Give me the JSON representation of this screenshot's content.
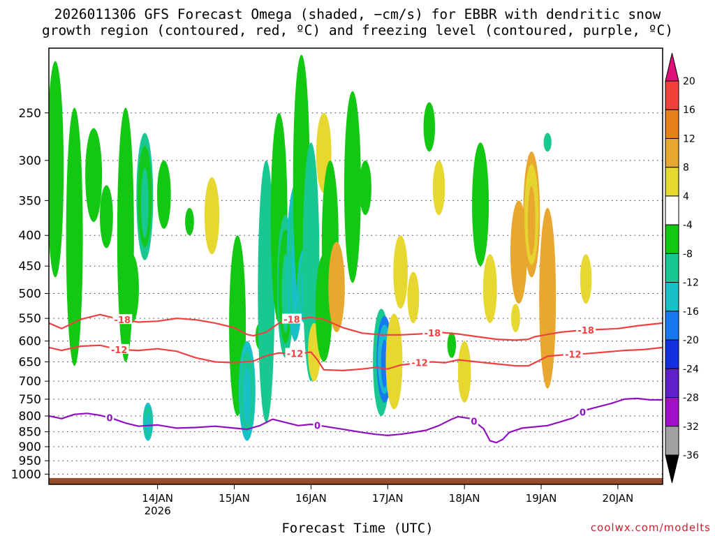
{
  "title": {
    "line1": "2026011306 GFS Forecast Omega (shaded, −cm/s) for EBBR with dendritic snow",
    "line2": "growth region (contoured, red, ºC) and freezing level (contoured, purple, ºC)"
  },
  "credit": "coolwx.com/modelts",
  "chart_data": {
    "type": "heatmap",
    "xlabel": "Forecast Time (UTC)",
    "ylabel": "",
    "x_range_hours": [
      -16,
      176
    ],
    "y_scale": "log-pressure (inverted)",
    "y_range_hpa": [
      1040,
      195
    ],
    "x_ticks": [
      {
        "label": "14JAN",
        "sublabel": "2026",
        "hour": 18
      },
      {
        "label": "15JAN",
        "sublabel": "",
        "hour": 42
      },
      {
        "label": "16JAN",
        "sublabel": "",
        "hour": 66
      },
      {
        "label": "17JAN",
        "sublabel": "",
        "hour": 90
      },
      {
        "label": "18JAN",
        "sublabel": "",
        "hour": 114
      },
      {
        "label": "19JAN",
        "sublabel": "",
        "hour": 138
      },
      {
        "label": "20JAN",
        "sublabel": "",
        "hour": 162
      }
    ],
    "y_ticks": [
      {
        "label": "250",
        "p": 250
      },
      {
        "label": "300",
        "p": 300
      },
      {
        "label": "350",
        "p": 350
      },
      {
        "label": "400",
        "p": 400
      },
      {
        "label": "450",
        "p": 450
      },
      {
        "label": "500",
        "p": 500
      },
      {
        "label": "550",
        "p": 550
      },
      {
        "label": "600",
        "p": 600
      },
      {
        "label": "650",
        "p": 650
      },
      {
        "label": "700",
        "p": 700
      },
      {
        "label": "750",
        "p": 750
      },
      {
        "label": "800",
        "p": 800
      },
      {
        "label": "850",
        "p": 850
      },
      {
        "label": "900",
        "p": 900
      },
      {
        "label": "950",
        "p": 950
      },
      {
        "label": "1000",
        "p": 1000
      }
    ],
    "grid": "dotted horizontal lines",
    "colorbar": {
      "units": "-cm/s",
      "labels": [
        "20",
        "16",
        "12",
        "8",
        "4",
        "-4",
        "-8",
        "-12",
        "-16",
        "-20",
        "-24",
        "-28",
        "-32",
        "-36"
      ],
      "bins": [
        {
          "range": "> 20",
          "color": "#e0107a"
        },
        {
          "range": "16 to 20",
          "color": "#f0403a"
        },
        {
          "range": "12 to 16",
          "color": "#e8801e"
        },
        {
          "range": "8 to 12",
          "color": "#e8a830"
        },
        {
          "range": "4 to 8",
          "color": "#e6d830"
        },
        {
          "range": "-4 to 4",
          "color": "#ffffff"
        },
        {
          "range": "-8 to -4",
          "color": "#12c812"
        },
        {
          "range": "-12 to -8",
          "color": "#18c890"
        },
        {
          "range": "-16 to -12",
          "color": "#18c0c8"
        },
        {
          "range": "-20 to -16",
          "color": "#1878f0"
        },
        {
          "range": "-24 to -20",
          "color": "#1430e0"
        },
        {
          "range": "-28 to -24",
          "color": "#6020c8"
        },
        {
          "range": "-32 to -28",
          "color": "#a010c8"
        },
        {
          "range": "-36 to -32",
          "color": "#a0a0a0"
        },
        {
          "range": "< -36",
          "color": "#000000"
        }
      ]
    },
    "contours": [
      {
        "name": "-18",
        "color": "#f04040",
        "labels": [
          {
            "hour": 7,
            "text": "-18"
          },
          {
            "hour": 60,
            "text": "-18"
          },
          {
            "hour": 104,
            "text": "-18"
          },
          {
            "hour": 152,
            "text": "-18"
          }
        ],
        "points": [
          [
            -16,
            560
          ],
          [
            -12,
            572
          ],
          [
            -6,
            552
          ],
          [
            0,
            542
          ],
          [
            6,
            552
          ],
          [
            12,
            558
          ],
          [
            18,
            556
          ],
          [
            24,
            550
          ],
          [
            30,
            553
          ],
          [
            36,
            560
          ],
          [
            42,
            570
          ],
          [
            46,
            585
          ],
          [
            48,
            588
          ],
          [
            52,
            580
          ],
          [
            56,
            560
          ],
          [
            60,
            552
          ],
          [
            66,
            548
          ],
          [
            70,
            552
          ],
          [
            76,
            570
          ],
          [
            82,
            582
          ],
          [
            88,
            586
          ],
          [
            94,
            586
          ],
          [
            100,
            584
          ],
          [
            106,
            580
          ],
          [
            112,
            584
          ],
          [
            118,
            590
          ],
          [
            124,
            596
          ],
          [
            130,
            598
          ],
          [
            134,
            596
          ],
          [
            136,
            590
          ],
          [
            144,
            580
          ],
          [
            150,
            576
          ],
          [
            156,
            574
          ],
          [
            162,
            572
          ],
          [
            168,
            566
          ],
          [
            176,
            560
          ]
        ]
      },
      {
        "name": "-12",
        "color": "#f04040",
        "labels": [
          {
            "hour": 6,
            "text": "-12"
          },
          {
            "hour": 61,
            "text": "-12"
          },
          {
            "hour": 100,
            "text": "-12"
          },
          {
            "hour": 148,
            "text": "-12"
          }
        ],
        "points": [
          [
            -16,
            615
          ],
          [
            -12,
            622
          ],
          [
            -6,
            612
          ],
          [
            0,
            610
          ],
          [
            6,
            620
          ],
          [
            12,
            622
          ],
          [
            18,
            618
          ],
          [
            24,
            624
          ],
          [
            30,
            640
          ],
          [
            36,
            650
          ],
          [
            42,
            652
          ],
          [
            48,
            648
          ],
          [
            52,
            635
          ],
          [
            56,
            628
          ],
          [
            60,
            630
          ],
          [
            64,
            628
          ],
          [
            66,
            626
          ],
          [
            68,
            645
          ],
          [
            70,
            670
          ],
          [
            76,
            672
          ],
          [
            82,
            668
          ],
          [
            86,
            664
          ],
          [
            90,
            668
          ],
          [
            94,
            658
          ],
          [
            100,
            652
          ],
          [
            104,
            650
          ],
          [
            108,
            652
          ],
          [
            112,
            645
          ],
          [
            118,
            650
          ],
          [
            124,
            655
          ],
          [
            130,
            660
          ],
          [
            134,
            660
          ],
          [
            136,
            652
          ],
          [
            140,
            636
          ],
          [
            146,
            632
          ],
          [
            152,
            630
          ],
          [
            158,
            626
          ],
          [
            164,
            622
          ],
          [
            170,
            620
          ],
          [
            176,
            615
          ]
        ]
      },
      {
        "name": "0",
        "color": "#9010c0",
        "labels": [
          {
            "hour": 3,
            "text": "0"
          },
          {
            "hour": 68,
            "text": "0"
          },
          {
            "hour": 117,
            "text": "0"
          },
          {
            "hour": 151,
            "text": "0"
          }
        ],
        "points": [
          [
            -16,
            800
          ],
          [
            -12,
            808
          ],
          [
            -8,
            795
          ],
          [
            -4,
            792
          ],
          [
            0,
            798
          ],
          [
            4,
            808
          ],
          [
            8,
            822
          ],
          [
            12,
            832
          ],
          [
            18,
            828
          ],
          [
            24,
            838
          ],
          [
            30,
            836
          ],
          [
            36,
            832
          ],
          [
            42,
            838
          ],
          [
            46,
            842
          ],
          [
            50,
            830
          ],
          [
            54,
            810
          ],
          [
            58,
            820
          ],
          [
            62,
            830
          ],
          [
            66,
            826
          ],
          [
            70,
            832
          ],
          [
            76,
            842
          ],
          [
            82,
            852
          ],
          [
            86,
            858
          ],
          [
            90,
            862
          ],
          [
            94,
            858
          ],
          [
            98,
            852
          ],
          [
            102,
            845
          ],
          [
            106,
            830
          ],
          [
            110,
            810
          ],
          [
            112,
            802
          ],
          [
            116,
            808
          ],
          [
            120,
            840
          ],
          [
            122,
            880
          ],
          [
            124,
            886
          ],
          [
            126,
            875
          ],
          [
            128,
            852
          ],
          [
            132,
            838
          ],
          [
            136,
            834
          ],
          [
            140,
            830
          ],
          [
            144,
            818
          ],
          [
            148,
            806
          ],
          [
            152,
            782
          ],
          [
            156,
            772
          ],
          [
            160,
            762
          ],
          [
            164,
            750
          ],
          [
            168,
            748
          ],
          [
            172,
            752
          ],
          [
            176,
            752
          ]
        ]
      }
    ],
    "terrain": {
      "color": "#9a4c2a",
      "p_top": 1015
    },
    "omega_regions": [
      {
        "hour": -14,
        "p": [
          205,
          470
        ],
        "value": -6
      },
      {
        "hour": -8,
        "p": [
          245,
          660
        ],
        "value": -7
      },
      {
        "hour": -2,
        "p": [
          265,
          380
        ],
        "value": -6
      },
      {
        "hour": 2,
        "p": [
          330,
          420
        ],
        "value": -6
      },
      {
        "hour": 8,
        "p": [
          245,
          650
        ],
        "value": -7
      },
      {
        "hour": 10,
        "p": [
          430,
          560
        ],
        "value": -7
      },
      {
        "hour": 14,
        "p": [
          270,
          440
        ],
        "value": -10
      },
      {
        "hour": 15,
        "p": [
          760,
          880
        ],
        "value": -12
      },
      {
        "hour": 20,
        "p": [
          300,
          390
        ],
        "value": -6
      },
      {
        "hour": 28,
        "p": [
          360,
          400
        ],
        "value": -6
      },
      {
        "hour": 35,
        "p": [
          320,
          430
        ],
        "value": 5
      },
      {
        "hour": 43,
        "p": [
          400,
          800
        ],
        "value": -7
      },
      {
        "hour": 46,
        "p": [
          600,
          880
        ],
        "value": -12
      },
      {
        "hour": 50,
        "p": [
          560,
          620
        ],
        "value": -7
      },
      {
        "hour": 52,
        "p": [
          300,
          820
        ],
        "value": -8
      },
      {
        "hour": 56,
        "p": [
          250,
          560
        ],
        "value": -7
      },
      {
        "hour": 58,
        "p": [
          370,
          640
        ],
        "value": -10
      },
      {
        "hour": 61,
        "p": [
          330,
          600
        ],
        "value": -12
      },
      {
        "hour": 63,
        "p": [
          200,
          530
        ],
        "value": -7
      },
      {
        "hour": 64,
        "p": [
          420,
          560
        ],
        "value": -15
      },
      {
        "hour": 66,
        "p": [
          280,
          700
        ],
        "value": -8
      },
      {
        "hour": 67,
        "p": [
          560,
          700
        ],
        "value": 5
      },
      {
        "hour": 70,
        "p": [
          250,
          340
        ],
        "value": 6
      },
      {
        "hour": 70,
        "p": [
          430,
          650
        ],
        "value": -7
      },
      {
        "hour": 72,
        "p": [
          300,
          560
        ],
        "value": -7
      },
      {
        "hour": 74,
        "p": [
          410,
          580
        ],
        "value": 8
      },
      {
        "hour": 79,
        "p": [
          230,
          480
        ],
        "value": -6
      },
      {
        "hour": 83,
        "p": [
          300,
          370
        ],
        "value": -7
      },
      {
        "hour": 88,
        "p": [
          530,
          800
        ],
        "value": -8
      },
      {
        "hour": 89,
        "p": [
          545,
          760
        ],
        "value": -18
      },
      {
        "hour": 92,
        "p": [
          540,
          780
        ],
        "value": 5
      },
      {
        "hour": 94,
        "p": [
          400,
          530
        ],
        "value": 5
      },
      {
        "hour": 98,
        "p": [
          460,
          560
        ],
        "value": 5
      },
      {
        "hour": 103,
        "p": [
          240,
          290
        ],
        "value": -6
      },
      {
        "hour": 106,
        "p": [
          300,
          370
        ],
        "value": 5
      },
      {
        "hour": 110,
        "p": [
          580,
          640
        ],
        "value": -6
      },
      {
        "hour": 114,
        "p": [
          600,
          760
        ],
        "value": 5
      },
      {
        "hour": 119,
        "p": [
          280,
          450
        ],
        "value": -6
      },
      {
        "hour": 122,
        "p": [
          430,
          560
        ],
        "value": 5
      },
      {
        "hour": 130,
        "p": [
          520,
          580
        ],
        "value": 6
      },
      {
        "hour": 131,
        "p": [
          350,
          520
        ],
        "value": 9
      },
      {
        "hour": 135,
        "p": [
          290,
          470
        ],
        "value": 11
      },
      {
        "hour": 140,
        "p": [
          360,
          720
        ],
        "value": 8
      },
      {
        "hour": 140,
        "p": [
          270,
          290
        ],
        "value": -8
      },
      {
        "hour": 152,
        "p": [
          430,
          520
        ],
        "value": 5
      }
    ]
  }
}
